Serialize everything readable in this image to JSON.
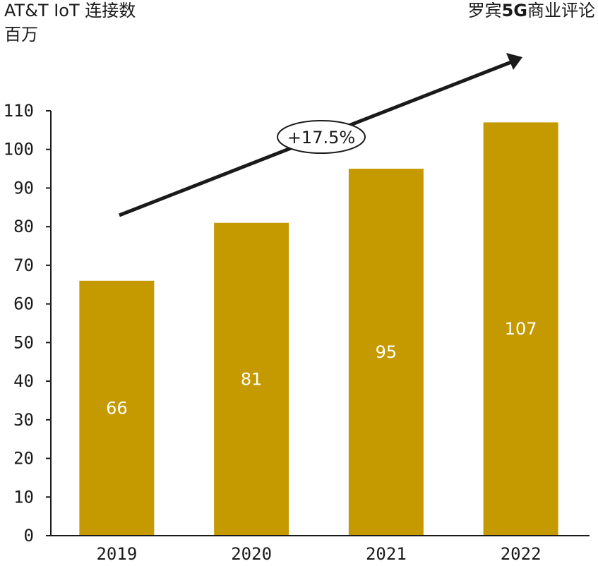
{
  "header": {
    "title_line1": "AT&T IoT 连接数",
    "title_line2": "百万",
    "source_prefix": "罗宾",
    "source_highlight": "5G",
    "source_suffix": "商业评论"
  },
  "annotation": {
    "growth_label": "+17.5%"
  },
  "colors": {
    "bar": "#c49a00",
    "axis": "#1a1a1a",
    "arrow": "#1a1a1a",
    "bar_label": "#ffffff"
  },
  "chart_data": {
    "type": "bar",
    "categories": [
      "2019",
      "2020",
      "2021",
      "2022"
    ],
    "values": [
      66,
      81,
      95,
      107
    ],
    "data_labels": [
      "66",
      "81",
      "95",
      "107"
    ],
    "ylim": [
      0,
      110
    ],
    "yticks": [
      0,
      10,
      20,
      30,
      40,
      50,
      60,
      70,
      80,
      90,
      100,
      110
    ],
    "grid": false,
    "legend": "none"
  }
}
